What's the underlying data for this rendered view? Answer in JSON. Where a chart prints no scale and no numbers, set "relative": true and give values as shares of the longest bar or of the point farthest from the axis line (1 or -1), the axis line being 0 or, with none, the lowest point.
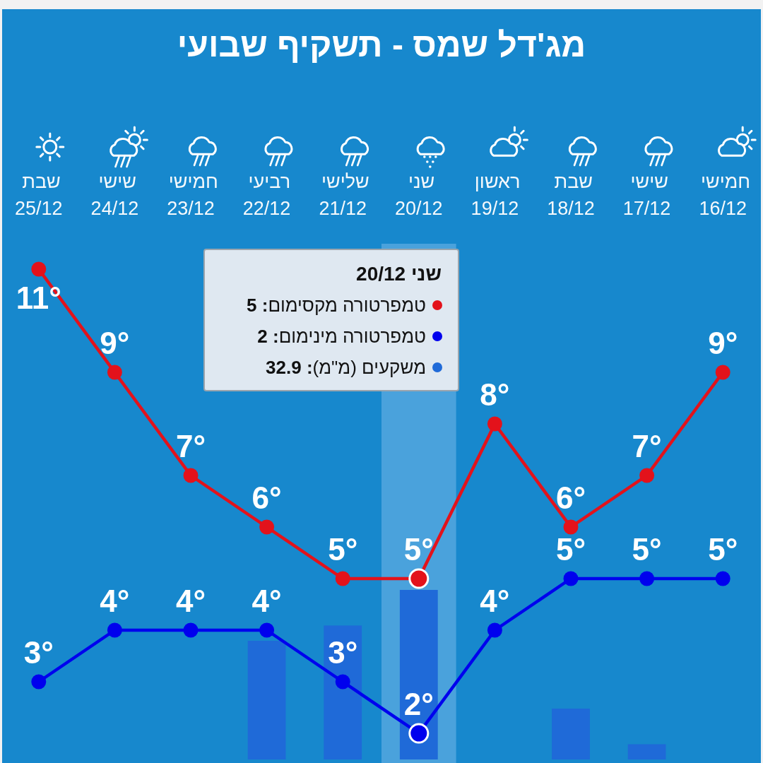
{
  "chart_data": [
    {
      "type": "line",
      "title": "מג'דל שמס - תשקיף שבועי",
      "categories": [
        "שבת 25/12",
        "שישי 24/12",
        "חמישי 23/12",
        "רביעי 22/12",
        "שלישי 21/12",
        "שני 20/12",
        "ראשון 19/12",
        "שבת 18/12",
        "שישי 17/12",
        "חמישי 16/12"
      ],
      "series": [
        {
          "name": "טמפרטורה מקסימום",
          "color": "#e3121b",
          "values": [
            11,
            9,
            7,
            6,
            5,
            5,
            8,
            6,
            7,
            9
          ],
          "value_labels": [
            "11°",
            "9°",
            "7°",
            "6°",
            "5°",
            "5°",
            "8°",
            "6°",
            "7°",
            "9°"
          ]
        },
        {
          "name": "טמפרטורה מינימום",
          "color": "#0000ee",
          "values": [
            3,
            4,
            4,
            4,
            3,
            2,
            4,
            5,
            5,
            5
          ],
          "value_labels": [
            "3°",
            "4°",
            "4°",
            "4°",
            "3°",
            "2°",
            "4°",
            "5°",
            "5°",
            "5°"
          ]
        }
      ],
      "tick_labels": "x",
      "marker": "circle",
      "line_style": "solid",
      "legend": "top",
      "legend_title": "שני 20/12",
      "annotations": [
        ": 5",
        ": 2"
      ],
      "bands": [
        {
          "axis": "x",
          "from": "שני 20/12",
          "to": "שני 20/12",
          "color": "#4aa2dc"
        }
      ]
    },
    {
      "type": "bar",
      "relative": true,
      "categories": [
        null,
        null,
        null,
        null,
        null,
        null,
        null,
        null,
        null,
        null
      ],
      "series": [
        {
          "name": "משקעים (מ\"מ)",
          "color": "#1f6ad8",
          "values": [
            0,
            0,
            0,
            0.7,
            0.79,
            1,
            0,
            0.3,
            0.09,
            0
          ]
        }
      ],
      "legend": "top",
      "annotations": [
        ": 32.9"
      ]
    }
  ]
}
